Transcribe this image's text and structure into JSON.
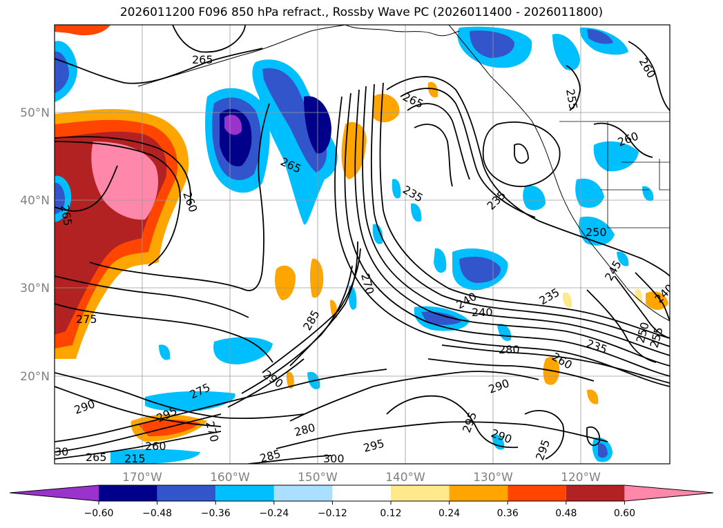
{
  "title": "2026011200 F096 850 hPa refract., Rossby Wave PC (2026011400 - 2026011800)",
  "latitude_labels": [
    "50°N",
    "40°N",
    "30°N",
    "20°N"
  ],
  "longitude_labels": [
    "170°W",
    "160°W",
    "150°W",
    "140°W",
    "130°W",
    "120°W"
  ],
  "colorbar": {
    "tick_labels": [
      "−0.60",
      "−0.48",
      "−0.36",
      "−0.24",
      "−0.12",
      "0.12",
      "0.24",
      "0.36",
      "0.48",
      "0.60"
    ],
    "colors": [
      "#9933cc",
      "#00008b",
      "#3355cc",
      "#00bfff",
      "#aadfff",
      "#ffffff",
      "#ffe98a",
      "#ffa500",
      "#ff4500",
      "#b22222",
      "#ff88aa"
    ]
  },
  "contour_labels": [
    "265",
    "260",
    "265",
    "265",
    "265",
    "255",
    "260",
    "260",
    "235",
    "235",
    "250",
    "245",
    "240",
    "240",
    "235",
    "270",
    "285",
    "275",
    "275",
    "290",
    "290",
    "295",
    "270",
    "260",
    "265",
    "280",
    "285",
    "300",
    "295",
    "280",
    "290",
    "295",
    "290",
    "295",
    "260",
    "235",
    "250",
    "255",
    "240",
    "30",
    "215"
  ]
}
